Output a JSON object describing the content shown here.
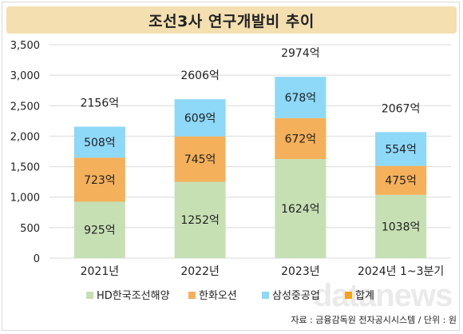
{
  "title": "조선3사 연구개발비 추이",
  "footer": "자료 : 금융감독원 전자공시시스템 / 단위 : 원",
  "watermark": "datanews",
  "chart_data": {
    "type": "bar",
    "stacked": true,
    "categories": [
      "2021년",
      "2022년",
      "2023년",
      "2024년 1~3분기"
    ],
    "series": [
      {
        "name": "HD한국조선해양",
        "values": [
          925,
          1252,
          1624,
          1038
        ],
        "color": "#c6e0b4"
      },
      {
        "name": "한화오션",
        "values": [
          723,
          745,
          672,
          475
        ],
        "color": "#f4b05a"
      },
      {
        "name": "삼성중공업",
        "values": [
          508,
          609,
          678,
          554
        ],
        "color": "#8ed8f8"
      }
    ],
    "totals": {
      "name": "합계",
      "values": [
        2156,
        2606,
        2974,
        2067
      ],
      "color": "#f4a21e"
    },
    "value_suffix": "억",
    "ylim": [
      0,
      3500
    ],
    "yticks": [
      0,
      500,
      1000,
      1500,
      2000,
      2500,
      3000,
      3500
    ],
    "ytick_labels": [
      "0",
      "500",
      "1,000",
      "1,500",
      "2,000",
      "2,500",
      "3,000",
      "3,500"
    ],
    "grid": true,
    "legend_position": "bottom"
  }
}
